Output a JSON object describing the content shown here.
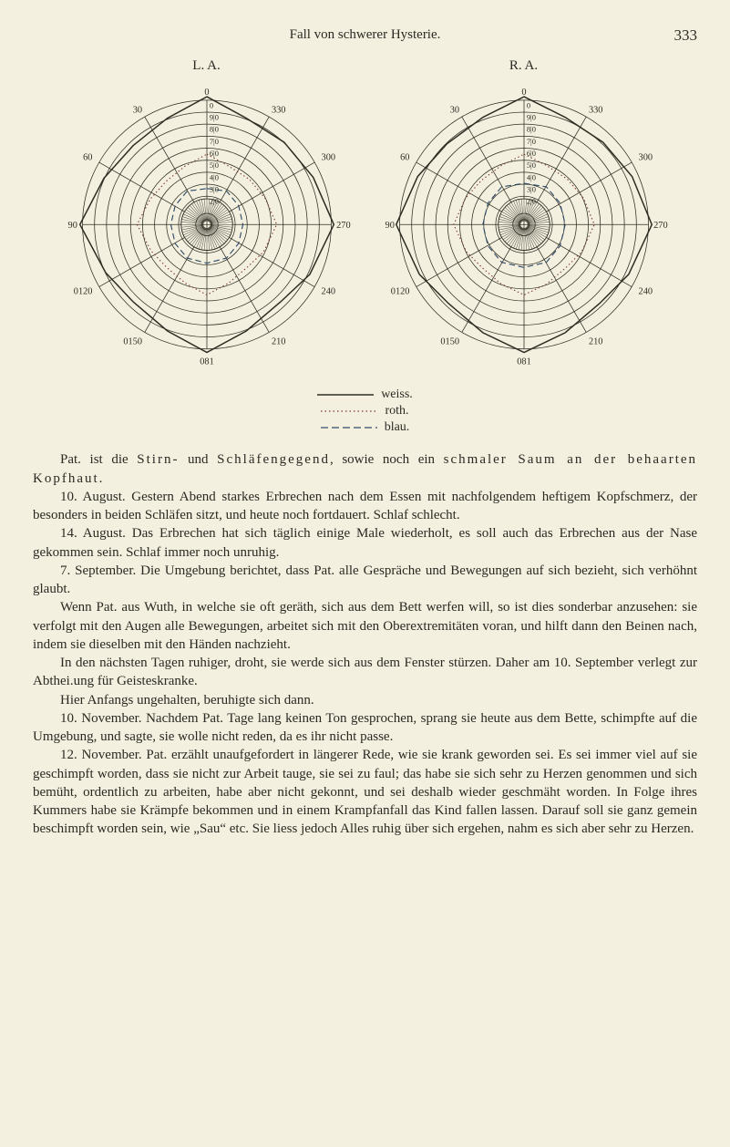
{
  "page": {
    "running_title": "Fall von schwerer Hysterie.",
    "page_number": "333"
  },
  "dials": {
    "left_label": "L. A.",
    "right_label": "R. A.",
    "outer_radius": 145,
    "inner_core_radius": 30,
    "stroke_color": "#2d2d22",
    "stroke_width": 1.0,
    "ring_radii": [
      145,
      131,
      117,
      103,
      89,
      75,
      61,
      47,
      33
    ],
    "spoke_angles_deg": [
      0,
      30,
      60,
      90,
      120,
      150,
      180,
      210,
      240,
      270,
      300,
      330
    ],
    "ring_labels_top": [
      "0",
      "9|0",
      "8|0",
      "7|0",
      "6|0",
      "5|0",
      "4|0",
      "3|0",
      "2|0"
    ],
    "axis_labels": {
      "top_left": {
        "near": "30",
        "far": "330"
      },
      "top_right": {
        "near": "30",
        "far": "330"
      },
      "side_left": {
        "near": "60",
        "far": "300"
      },
      "side_right": {
        "near": "60",
        "far": "300"
      },
      "h_left": "90",
      "h_right": "270",
      "btm_side_left": {
        "near": "0120",
        "far": "240"
      },
      "btm_side_right": {
        "near": "0120",
        "far": "240"
      },
      "btm": {
        "near": "0150",
        "far": "210"
      },
      "bottom": "081",
      "right_h_outer": "210"
    },
    "shading_fill": "#3b3b30",
    "left_white_poly": [
      [
        0,
        -149
      ],
      [
        46,
        -124
      ],
      [
        90,
        -96
      ],
      [
        124,
        -55
      ],
      [
        148,
        0
      ],
      [
        120,
        58
      ],
      [
        86,
        90
      ],
      [
        46,
        124
      ],
      [
        0,
        149
      ],
      [
        -46,
        124
      ],
      [
        -86,
        90
      ],
      [
        -118,
        56
      ],
      [
        -148,
        0
      ],
      [
        -120,
        -54
      ],
      [
        -86,
        -92
      ],
      [
        -46,
        -124
      ]
    ],
    "left_blue_poly": [
      [
        0,
        -42
      ],
      [
        23,
        -39
      ],
      [
        37,
        -22
      ],
      [
        42,
        0
      ],
      [
        37,
        22
      ],
      [
        23,
        39
      ],
      [
        0,
        45
      ],
      [
        -23,
        39
      ],
      [
        -37,
        22
      ],
      [
        -42,
        0
      ],
      [
        -37,
        -22
      ],
      [
        -23,
        -39
      ]
    ],
    "right_white_poly": [
      [
        0,
        -149
      ],
      [
        48,
        -125
      ],
      [
        92,
        -96
      ],
      [
        126,
        -56
      ],
      [
        149,
        0
      ],
      [
        122,
        58
      ],
      [
        88,
        92
      ],
      [
        48,
        126
      ],
      [
        0,
        149
      ],
      [
        -48,
        126
      ],
      [
        -88,
        92
      ],
      [
        -122,
        58
      ],
      [
        -149,
        0
      ],
      [
        -124,
        -56
      ],
      [
        -90,
        -94
      ],
      [
        -48,
        -125
      ]
    ],
    "right_blue_poly": [
      [
        0,
        -48
      ],
      [
        26,
        -44
      ],
      [
        42,
        -25
      ],
      [
        48,
        0
      ],
      [
        42,
        25
      ],
      [
        26,
        44
      ],
      [
        0,
        50
      ],
      [
        -26,
        44
      ],
      [
        -42,
        25
      ],
      [
        -48,
        0
      ],
      [
        -42,
        -25
      ],
      [
        -26,
        -44
      ]
    ],
    "red_color": "#7a3a2e",
    "blue_color": "#2e4a66"
  },
  "legend": {
    "weiss": "weiss.",
    "roth": "roth.",
    "blau": "blau.",
    "solid_color": "#2d2d22",
    "dot_color": "#7a3a2e",
    "dash_color": "#2e4a66"
  },
  "paragraphs": {
    "p1": "Pat. ist die Stirn- und Schläfengegend, sowie noch ein schmaler Saum an der behaarten Kopfhaut.",
    "p1_sp_a": "Stirn-",
    "p1_sp_b": "Schläfengegend",
    "p1_sp_c": "schmaler Saum an der behaarten Kopfhaut",
    "p2": "10. August. Gestern Abend starkes Erbrechen nach dem Essen mit nachfolgendem heftigem Kopfschmerz, der besonders in beiden Schläfen sitzt, und heute noch fortdauert. Schlaf schlecht.",
    "p3": "14. August. Das Erbrechen hat sich täglich einige Male wiederholt, es soll auch das Erbrechen aus der Nase gekommen sein. Schlaf immer noch unruhig.",
    "p4": "7. September. Die Umgebung berichtet, dass Pat. alle Gespräche und Bewegungen auf sich bezieht, sich verhöhnt glaubt.",
    "p5": "Wenn Pat. aus Wuth, in welche sie oft geräth, sich aus dem Bett werfen will, so ist dies sonderbar anzusehen: sie verfolgt mit den Augen alle Bewegungen, arbeitet sich mit den Oberextremitäten voran, und hilft dann den Beinen nach, indem sie dieselben mit den Händen nachzieht.",
    "p6": "In den nächsten Tagen ruhiger, droht, sie werde sich aus dem Fenster stürzen. Daher am 10. September verlegt zur Abthei.ung für Geisteskranke.",
    "p7": "Hier Anfangs ungehalten, beruhigte sich dann.",
    "p8": "10. November. Nachdem Pat. Tage lang keinen Ton gesprochen, sprang sie heute aus dem Bette, schimpfte auf die Umgebung, und sagte, sie wolle nicht reden, da es ihr nicht passe.",
    "p9": "12. November. Pat. erzählt unaufgefordert in längerer Rede, wie sie krank geworden sei. Es sei immer viel auf sie geschimpft worden, dass sie nicht zur Arbeit tauge, sie sei zu faul; das habe sie sich sehr zu Herzen genommen und sich bemüht, ordentlich zu arbeiten, habe aber nicht gekonnt, und sei deshalb wieder geschmäht worden. In Folge ihres Kummers habe sie Krämpfe bekommen und in einem Krampfanfall das Kind fallen lassen. Darauf soll sie ganz gemein beschimpft worden sein, wie „Sau“ etc. Sie liess jedoch Alles ruhig über sich ergehen, nahm es sich aber sehr zu Herzen."
  }
}
